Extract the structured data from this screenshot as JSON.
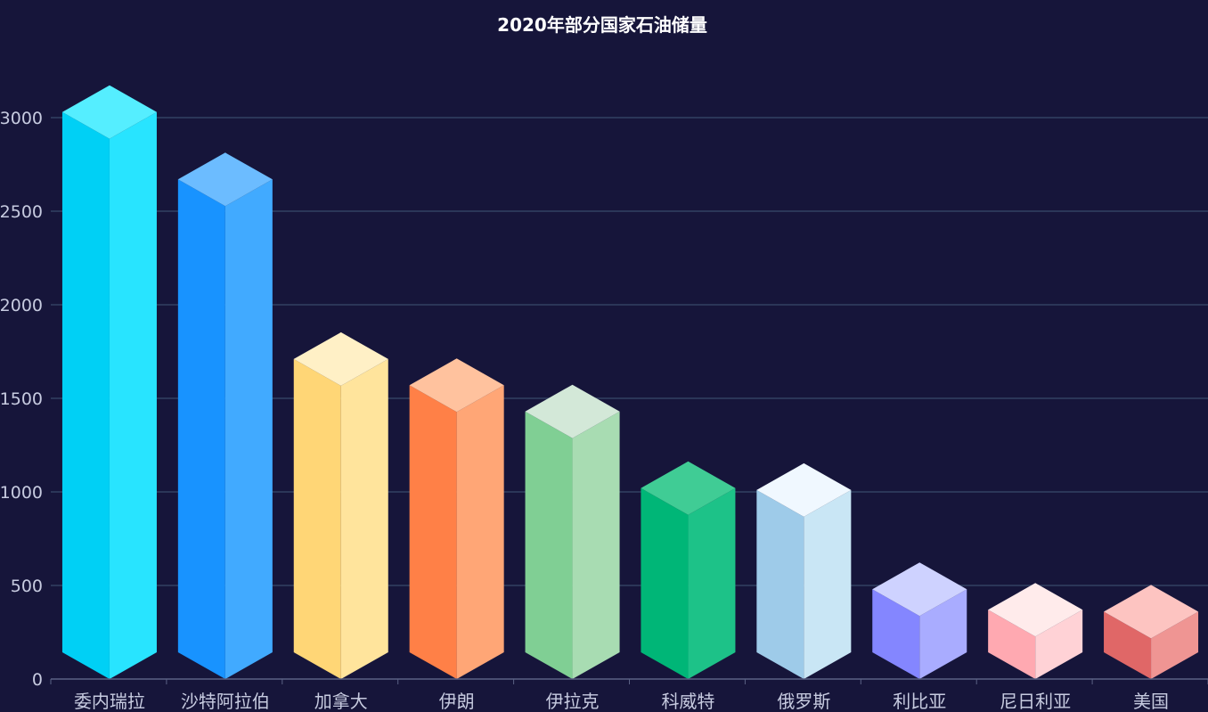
{
  "chart_data": {
    "type": "bar",
    "title": "2020年部分国家石油储量",
    "categories": [
      "委内瑞拉",
      "沙特阿拉伯",
      "加拿大",
      "伊朗",
      "伊拉克",
      "科威特",
      "俄罗斯",
      "利比亚",
      "尼日利亚",
      "美国"
    ],
    "values": [
      3030,
      2670,
      1710,
      1570,
      1430,
      1020,
      1010,
      480,
      370,
      360
    ],
    "ylim": [
      0,
      3000
    ],
    "yticks": [
      "0",
      "500",
      "1000",
      "1500",
      "2000",
      "2500",
      "3000"
    ],
    "grid": true,
    "colors": [
      {
        "top": "#55eeff",
        "left": "#00d0f5",
        "right": "#28e4ff"
      },
      {
        "top": "#6cbcff",
        "left": "#1893ff",
        "right": "#41aaff"
      },
      {
        "top": "#fff0c6",
        "left": "#ffd676",
        "right": "#ffe49c"
      },
      {
        "top": "#ffc29e",
        "left": "#ff8047",
        "right": "#ffa676"
      },
      {
        "top": "#d3e8d8",
        "left": "#80cf94",
        "right": "#a8dcb2"
      },
      {
        "top": "#40cc95",
        "left": "#00b677",
        "right": "#1dc288"
      },
      {
        "top": "#f0f8ff",
        "left": "#9ecbe9",
        "right": "#c9e6f5"
      },
      {
        "top": "#ced2ff",
        "left": "#8486ff",
        "right": "#a9acff"
      },
      {
        "top": "#ffebeb",
        "left": "#ffa9b1",
        "right": "#ffd2d6"
      },
      {
        "top": "#fdc4c1",
        "left": "#e06767",
        "right": "#ef9593"
      }
    ]
  }
}
